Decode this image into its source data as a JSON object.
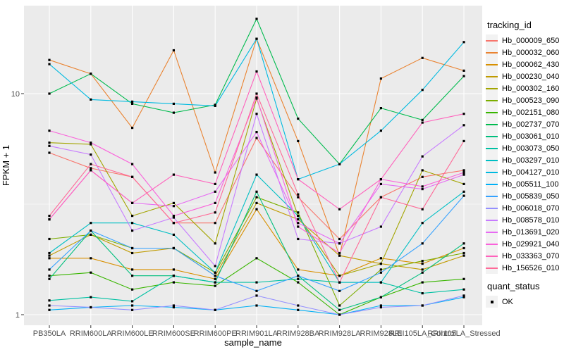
{
  "figure": {
    "xlabel": "sample_name",
    "ylabel": "FPKM + 1",
    "legend_title": "tracking_id",
    "quant_legend_title": "quant_status",
    "quant_legend_item": "OK"
  },
  "colors": {
    "panel_bg": "#EBEBEB",
    "grid": "#FFFFFF",
    "legend_key_bg": "#F2F2F2",
    "marker": "#000000",
    "axis_text": "#4D4D4D",
    "title_text": "#000000"
  },
  "chart_data": {
    "type": "line",
    "xlabel": "sample_name",
    "ylabel": "FPKM + 1",
    "y_scale": "log10",
    "y_major_ticks": [
      1,
      10
    ],
    "y_minor_ticks": [
      3.162
    ],
    "ylim": [
      0.9,
      25
    ],
    "grid": true,
    "legend_position": "right",
    "marker": "black-square",
    "x_categories": [
      "PB350LA",
      "RRIM600LA",
      "RRIM600LE",
      "RRIM600SE",
      "RRIM600PE",
      "RRIM901LA",
      "RRIM928BA",
      "RRIM928LA",
      "RRIM928LE",
      "RRII105LA_Control",
      "RRII105LA_Stressed"
    ],
    "series": [
      {
        "name": "Hb_000009_650",
        "color": "#F8766D",
        "values": [
          5.4,
          4.6,
          4.2,
          2.6,
          2.6,
          6.3,
          3.4,
          2.2,
          3.4,
          4.2,
          4.5
        ]
      },
      {
        "name": "Hb_000032_060",
        "color": "#EA8331",
        "values": [
          14.2,
          12.3,
          7.0,
          15.7,
          4.4,
          17.7,
          6.1,
          1.85,
          11.7,
          14.5,
          12.7
        ]
      },
      {
        "name": "Hb_000062_430",
        "color": "#D89000",
        "values": [
          1.8,
          1.8,
          1.6,
          1.6,
          1.45,
          3.0,
          1.6,
          1.5,
          1.8,
          1.7,
          2.0
        ]
      },
      {
        "name": "Hb_000230_040",
        "color": "#C09B00",
        "values": [
          1.85,
          2.3,
          1.9,
          2.0,
          1.5,
          3.2,
          2.7,
          1.85,
          1.7,
          1.6,
          1.85
        ]
      },
      {
        "name": "Hb_000302_160",
        "color": "#A3A500",
        "values": [
          6.0,
          5.9,
          2.8,
          3.2,
          2.1,
          9.5,
          2.8,
          1.5,
          1.7,
          4.5,
          3.9
        ]
      },
      {
        "name": "Hb_000523_090",
        "color": "#7CAE00",
        "values": [
          2.2,
          2.3,
          2.0,
          2.0,
          1.55,
          3.4,
          2.9,
          1.1,
          1.6,
          1.75,
          1.9
        ]
      },
      {
        "name": "Hb_002151_080",
        "color": "#39B600",
        "values": [
          1.5,
          1.55,
          1.3,
          1.4,
          1.35,
          1.8,
          1.4,
          1.0,
          1.2,
          1.4,
          1.45
        ]
      },
      {
        "name": "Hb_002737_070",
        "color": "#00BB4E",
        "values": [
          10.0,
          12.3,
          9.0,
          8.2,
          8.9,
          21.8,
          7.7,
          4.8,
          8.6,
          7.6,
          12.0
        ]
      },
      {
        "name": "Hb_003061_010",
        "color": "#00BF7D",
        "values": [
          1.45,
          2.4,
          1.5,
          1.5,
          1.4,
          3.6,
          1.5,
          1.05,
          1.2,
          1.55,
          2.1
        ]
      },
      {
        "name": "Hb_003073_050",
        "color": "#00C1A3",
        "values": [
          1.16,
          1.2,
          1.15,
          1.5,
          1.4,
          1.4,
          1.45,
          1.4,
          1.4,
          1.25,
          1.3
        ]
      },
      {
        "name": "Hb_003297_010",
        "color": "#00BFC4",
        "values": [
          1.9,
          2.6,
          2.6,
          2.3,
          1.55,
          4.3,
          2.8,
          1.4,
          1.4,
          2.6,
          3.6
        ]
      },
      {
        "name": "Hb_004127_010",
        "color": "#00BAE0",
        "values": [
          13.6,
          9.4,
          9.2,
          9.0,
          8.8,
          17.7,
          4.1,
          4.8,
          6.8,
          10.4,
          17.1
        ]
      },
      {
        "name": "Hb_005511_100",
        "color": "#00B0F6",
        "values": [
          1.05,
          1.08,
          1.1,
          1.08,
          1.05,
          1.1,
          1.05,
          1.0,
          1.1,
          1.1,
          1.2
        ]
      },
      {
        "name": "Hb_005839_050",
        "color": "#35A2FF",
        "values": [
          1.6,
          2.4,
          2.0,
          2.0,
          1.5,
          1.28,
          1.5,
          1.28,
          1.55,
          2.1,
          3.45
        ]
      },
      {
        "name": "Hb_006018_070",
        "color": "#9590FF",
        "values": [
          1.1,
          1.08,
          1.05,
          1.1,
          1.05,
          1.22,
          1.1,
          1.0,
          1.08,
          1.1,
          1.22
        ]
      },
      {
        "name": "Hb_008578_010",
        "color": "#C77CFF",
        "values": [
          5.8,
          5.3,
          2.4,
          2.75,
          1.66,
          8.1,
          2.2,
          2.1,
          2.5,
          5.2,
          7.2
        ]
      },
      {
        "name": "Hb_013691_020",
        "color": "#E76BF3",
        "values": [
          2.7,
          4.5,
          3.2,
          3.1,
          3.6,
          6.7,
          2.6,
          2.1,
          3.9,
          3.7,
          4.3
        ]
      },
      {
        "name": "Hb_029921_040",
        "color": "#FA62DB",
        "values": [
          6.8,
          6.0,
          4.8,
          2.8,
          3.2,
          9.6,
          2.5,
          1.9,
          4.1,
          3.8,
          4.4
        ]
      },
      {
        "name": "Hb_033363_070",
        "color": "#FF62BC",
        "values": [
          2.7,
          4.5,
          3.2,
          4.3,
          3.9,
          12.6,
          4.1,
          3.0,
          4.1,
          7.4,
          8.1
        ]
      },
      {
        "name": "Hb_156526_010",
        "color": "#FF6A98",
        "values": [
          2.8,
          4.8,
          4.2,
          2.6,
          2.9,
          10.0,
          3.5,
          1.4,
          3.4,
          3.0,
          6.1
        ]
      }
    ]
  }
}
